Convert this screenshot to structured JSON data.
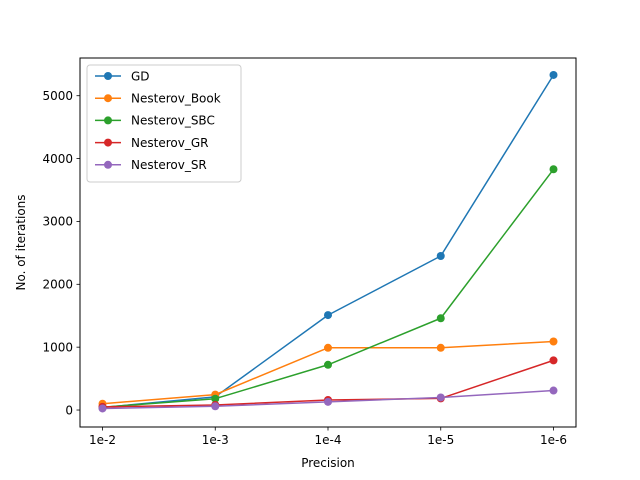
{
  "chart_data": {
    "type": "line",
    "xlabel": "Precision",
    "ylabel": "No. of iterations",
    "categories": [
      "1e-2",
      "1e-3",
      "1e-4",
      "1e-5",
      "1e-6"
    ],
    "ylim": [
      -270,
      5600
    ],
    "yticks": [
      0,
      1000,
      2000,
      3000,
      4000,
      5000
    ],
    "grid": false,
    "legend_position": "upper-left",
    "markers": true,
    "series": [
      {
        "name": "GD",
        "color": "#1f77b4",
        "values": [
          40,
          210,
          1510,
          2450,
          5330
        ]
      },
      {
        "name": "Nesterov_Book",
        "color": "#ff7f0e",
        "values": [
          100,
          245,
          990,
          990,
          1090
        ]
      },
      {
        "name": "Nesterov_SBC",
        "color": "#2ca02c",
        "values": [
          45,
          180,
          720,
          1460,
          3830
        ]
      },
      {
        "name": "Nesterov_GR",
        "color": "#d62728",
        "values": [
          50,
          80,
          160,
          185,
          790
        ]
      },
      {
        "name": "Nesterov_SR",
        "color": "#9467bd",
        "values": [
          25,
          60,
          130,
          200,
          310
        ]
      }
    ]
  }
}
